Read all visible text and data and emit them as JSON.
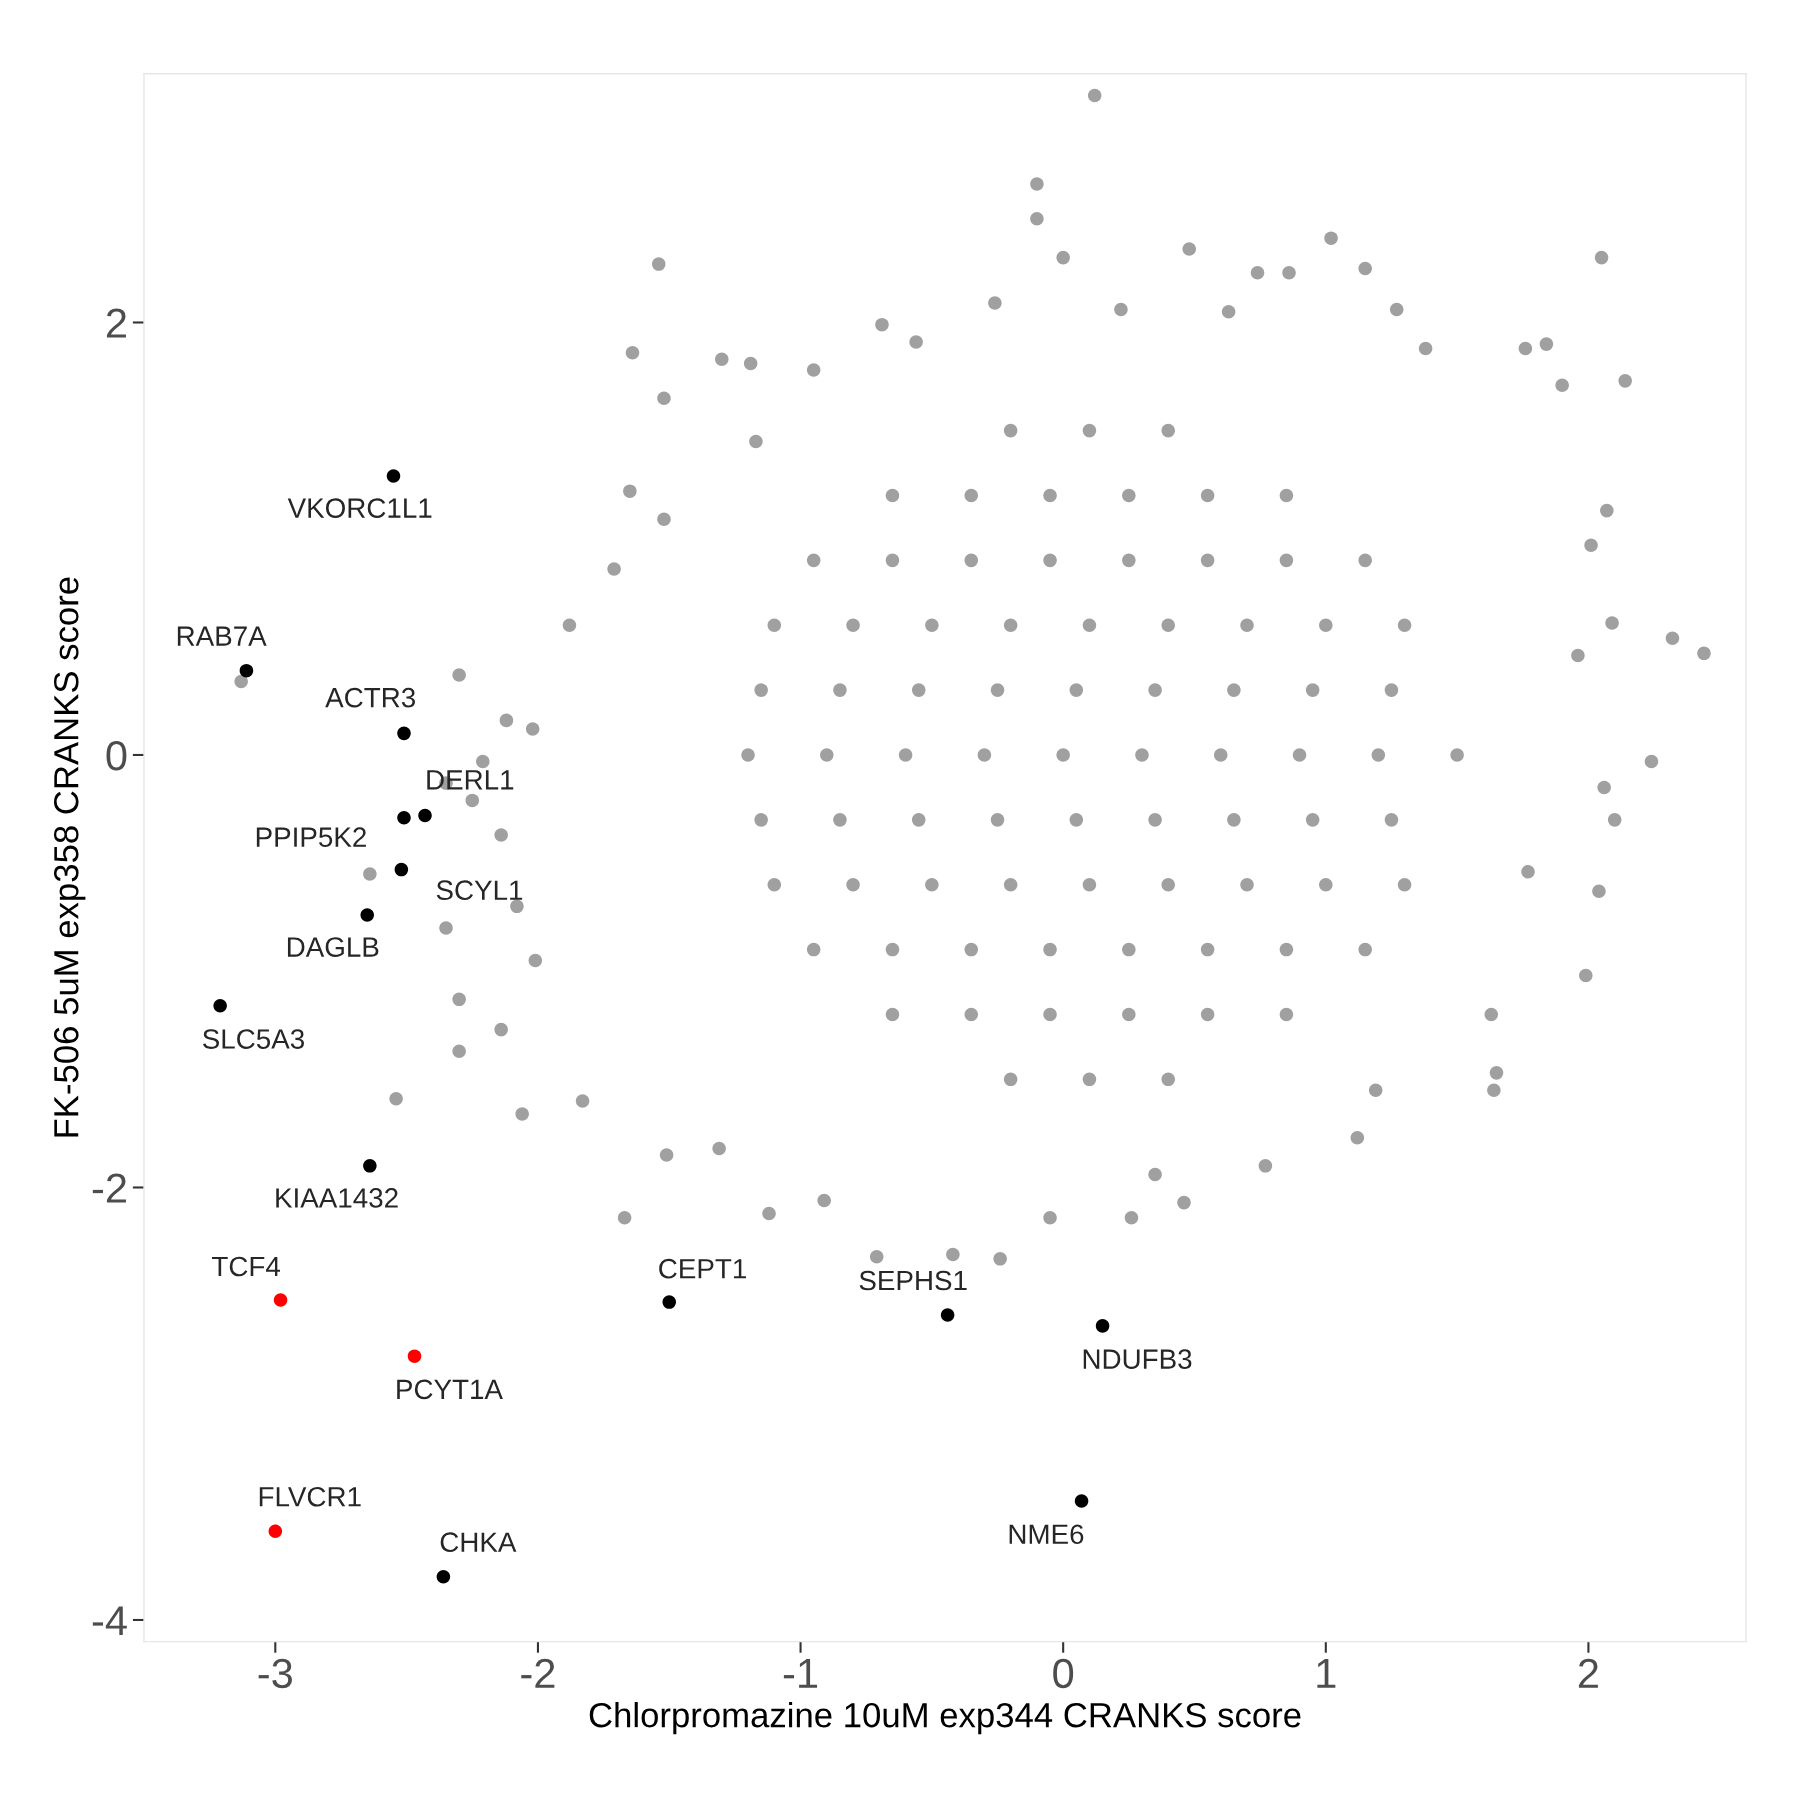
{
  "chart_data": {
    "type": "scatter",
    "xlabel": "Chlorpromazine 10uM exp344 CRANKS score",
    "ylabel": "FK-506 5uM exp358 CRANKS score",
    "xlim": [
      -3.5,
      2.6
    ],
    "ylim": [
      -4.1,
      3.15
    ],
    "xticks": [
      {
        "value": -3,
        "label": "-3"
      },
      {
        "value": -2,
        "label": "-2"
      },
      {
        "value": -1,
        "label": "-1"
      },
      0,
      1,
      2
    ],
    "yticks": [
      {
        "value": -4,
        "label": "-4"
      },
      {
        "value": -2,
        "label": "-2"
      },
      0,
      2
    ],
    "grid": false,
    "legend": false,
    "marker": "circle",
    "series": [
      {
        "color": "#a0a0a0",
        "x": [
          0.12,
          -0.1,
          -0.1,
          1.02,
          2.05,
          -1.54,
          0.48,
          2.14,
          1.76,
          -1.64,
          -1.52,
          2.32,
          2.44,
          2.24,
          2.1,
          1.99,
          1.64,
          1.12,
          -0.24,
          -0.71,
          -1.67,
          -1.12,
          -0.91,
          0.46,
          0.26,
          -2.06,
          -2.3,
          -2.3,
          -2.54,
          -2.64,
          -3.13,
          -2.3,
          -2.21,
          -2.25,
          -2.35,
          -2.35,
          -2.14,
          1.27,
          1.38,
          1.84,
          1.9,
          2.07,
          2.01,
          2.09,
          1.96,
          2.06,
          2.04,
          1.77,
          1.63,
          1.65,
          1.19,
          0.77,
          0.35,
          -0.05,
          -0.42,
          -1.31,
          -1.51,
          -1.83,
          -2.01,
          -2.08,
          -2.14,
          -2.02,
          -2.12,
          -1.88,
          -1.71,
          -1.65,
          -1.52,
          -1.17,
          -0.95,
          -0.69,
          -0.56,
          -0.26,
          0.0,
          0.22,
          0.63,
          0.74,
          0.86,
          1.15,
          -1.3,
          -1.19,
          -0.2,
          0.1,
          0.4,
          -0.2,
          0.1,
          0.4,
          -0.65,
          -0.35,
          -0.05,
          0.25,
          0.55,
          0.85,
          -0.65,
          -0.35,
          -0.05,
          0.25,
          0.55,
          0.85,
          -0.95,
          -0.65,
          -0.35,
          -0.05,
          0.25,
          0.55,
          0.85,
          1.15,
          -0.95,
          -0.65,
          -0.35,
          -0.05,
          0.25,
          0.55,
          0.85,
          1.15,
          -1.1,
          -0.8,
          -0.5,
          -0.2,
          0.1,
          0.4,
          0.7,
          1.0,
          1.3,
          -1.1,
          -0.8,
          -0.5,
          -0.2,
          0.1,
          0.4,
          0.7,
          1.0,
          1.3,
          -1.15,
          -0.85,
          -0.55,
          -0.25,
          0.05,
          0.35,
          0.65,
          0.95,
          1.25,
          -1.15,
          -0.85,
          -0.55,
          -0.25,
          0.05,
          0.35,
          0.65,
          0.95,
          1.25,
          -1.2,
          -0.9,
          -0.6,
          -0.3,
          0.0,
          0.3,
          0.6,
          0.9,
          1.2,
          1.5
        ],
        "values": [
          3.05,
          2.64,
          2.48,
          2.39,
          2.3,
          2.27,
          2.34,
          1.73,
          1.88,
          1.86,
          1.65,
          0.54,
          0.47,
          -0.03,
          -0.3,
          -1.02,
          -1.55,
          -1.77,
          -2.33,
          -2.32,
          -2.14,
          -2.12,
          -2.06,
          -2.07,
          -2.14,
          -1.66,
          -1.13,
          -1.37,
          -1.59,
          -0.55,
          0.34,
          0.37,
          -0.03,
          -0.21,
          -0.13,
          -0.8,
          -1.27,
          2.06,
          1.88,
          1.9,
          1.71,
          1.13,
          0.97,
          0.61,
          0.46,
          -0.15,
          -0.63,
          -0.54,
          -1.2,
          -1.47,
          -1.55,
          -1.9,
          -1.94,
          -2.14,
          -2.31,
          -1.82,
          -1.85,
          -1.6,
          -0.95,
          -0.7,
          -0.37,
          0.12,
          0.16,
          0.6,
          0.86,
          1.22,
          1.09,
          1.45,
          1.78,
          1.99,
          1.91,
          2.09,
          2.3,
          2.06,
          2.05,
          2.23,
          2.23,
          2.25,
          1.83,
          1.81,
          1.5,
          1.5,
          1.5,
          -1.5,
          -1.5,
          -1.5,
          1.2,
          1.2,
          1.2,
          1.2,
          1.2,
          1.2,
          -1.2,
          -1.2,
          -1.2,
          -1.2,
          -1.2,
          -1.2,
          0.9,
          0.9,
          0.9,
          0.9,
          0.9,
          0.9,
          0.9,
          0.9,
          -0.9,
          -0.9,
          -0.9,
          -0.9,
          -0.9,
          -0.9,
          -0.9,
          -0.9,
          0.6,
          0.6,
          0.6,
          0.6,
          0.6,
          0.6,
          0.6,
          0.6,
          0.6,
          -0.6,
          -0.6,
          -0.6,
          -0.6,
          -0.6,
          -0.6,
          -0.6,
          -0.6,
          -0.6,
          0.3,
          0.3,
          0.3,
          0.3,
          0.3,
          0.3,
          0.3,
          0.3,
          0.3,
          -0.3,
          -0.3,
          -0.3,
          -0.3,
          -0.3,
          -0.3,
          -0.3,
          -0.3,
          -0.3,
          0,
          0,
          0,
          0,
          0,
          0,
          0,
          0,
          0,
          0
        ]
      },
      {
        "color": "#000000",
        "x": [
          -2.55,
          -3.11,
          -2.51,
          -2.43,
          -2.51,
          -2.52,
          -2.65,
          -3.21,
          -2.64,
          -2.36,
          -1.5,
          -0.44,
          0.15,
          0.07
        ],
        "values": [
          1.29,
          0.39,
          0.1,
          -0.28,
          -0.29,
          -0.53,
          -0.74,
          -1.16,
          -1.9,
          -3.8,
          -2.53,
          -2.59,
          -2.64,
          -3.45
        ]
      },
      {
        "color": "#ff0000",
        "x": [
          -2.98,
          -2.47,
          -3.0
        ],
        "values": [
          -2.52,
          -2.78,
          -3.59
        ]
      }
    ],
    "annotations": [
      {
        "text": "VKORC1L1",
        "x": -2.55,
        "y": 1.29
      },
      {
        "text": "RAB7A",
        "x": -3.11,
        "y": 0.39
      },
      {
        "text": "ACTR3",
        "x": -2.51,
        "y": 0.1
      },
      {
        "text": "DERL1",
        "x": -2.43,
        "y": -0.28
      },
      {
        "text": "PPIP5K2",
        "x": -2.51,
        "y": -0.29
      },
      {
        "text": "SCYL1",
        "x": -2.52,
        "y": -0.53
      },
      {
        "text": "DAGLB",
        "x": -2.65,
        "y": -0.74
      },
      {
        "text": "SLC5A3",
        "x": -3.21,
        "y": -1.16
      },
      {
        "text": "KIAA1432",
        "x": -2.64,
        "y": -1.9
      },
      {
        "text": "CHKA",
        "x": -2.36,
        "y": -3.8
      },
      {
        "text": "CEPT1",
        "x": -1.5,
        "y": -2.53
      },
      {
        "text": "SEPHS1",
        "x": -0.44,
        "y": -2.59
      },
      {
        "text": "NDUFB3",
        "x": 0.15,
        "y": -2.64
      },
      {
        "text": "NME6",
        "x": 0.07,
        "y": -3.45
      },
      {
        "text": "TCF4",
        "x": -2.98,
        "y": -2.52
      },
      {
        "text": "PCYT1A",
        "x": -2.47,
        "y": -2.78
      },
      {
        "text": "FLVCR1",
        "x": -3.0,
        "y": -3.59
      }
    ]
  }
}
